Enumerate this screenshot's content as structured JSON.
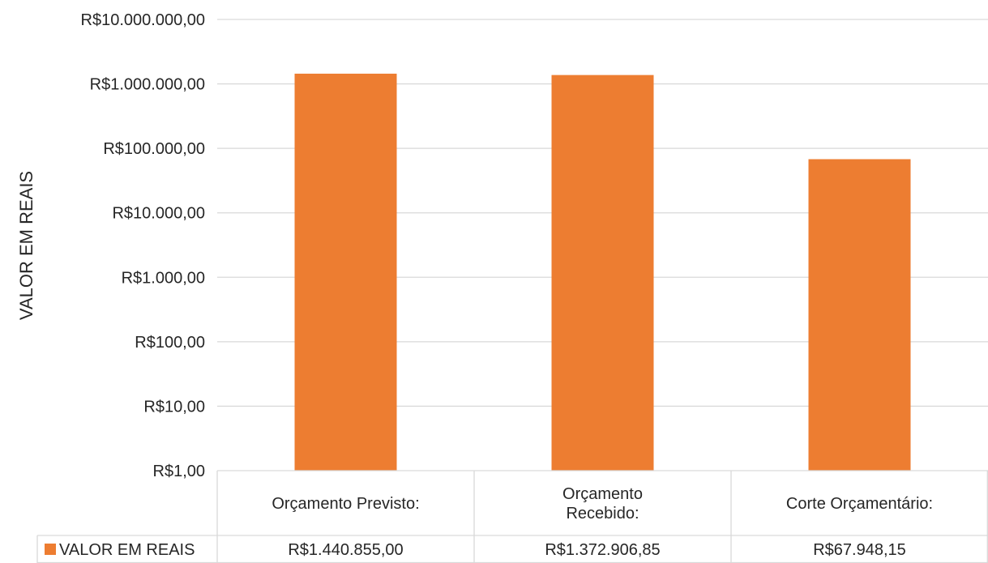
{
  "chart_data": {
    "type": "bar",
    "scale": "log10",
    "ylabel": "VALOR EM REAIS",
    "ylim": [
      1,
      10000000
    ],
    "yticks": [
      {
        "value": 10000000,
        "label": "R$10.000.000,00"
      },
      {
        "value": 1000000,
        "label": "R$1.000.000,00"
      },
      {
        "value": 100000,
        "label": "R$100.000,00"
      },
      {
        "value": 10000,
        "label": "R$10.000,00"
      },
      {
        "value": 1000,
        "label": "R$1.000,00"
      },
      {
        "value": 100,
        "label": "R$100,00"
      },
      {
        "value": 10,
        "label": "R$10,00"
      },
      {
        "value": 1,
        "label": "R$1,00"
      }
    ],
    "categories": [
      [
        "Orçamento Previsto:"
      ],
      [
        "Orçamento",
        "Recebido:"
      ],
      [
        "Corte Orçamentário:"
      ]
    ],
    "series": [
      {
        "name": "VALOR EM REAIS",
        "color": "#ED7D31",
        "values": [
          1440855.0,
          1372906.85,
          67948.15
        ],
        "value_labels": [
          "R$1.440.855,00",
          "R$1.372.906,85",
          "R$67.948,15"
        ]
      }
    ],
    "gridlines": true,
    "data_table": true,
    "legend": "in-data-table"
  }
}
